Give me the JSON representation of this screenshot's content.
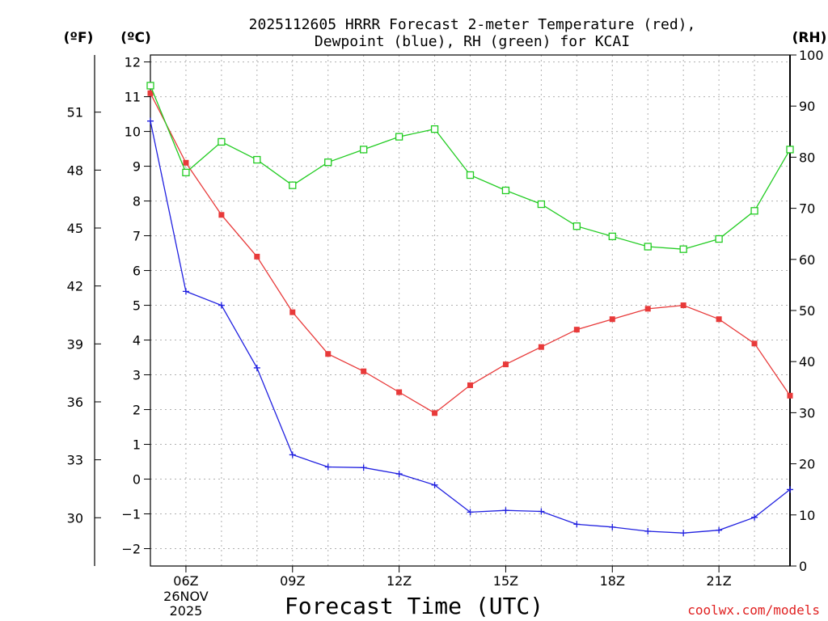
{
  "chart_data": {
    "type": "line",
    "title": [
      "2025112605 HRRR Forecast 2-meter Temperature (red),",
      "Dewpoint (blue), RH (green) for KCAI"
    ],
    "xlabel": "Forecast Time (UTC)",
    "credit": "coolwx.com/models",
    "axis_units": {
      "left_outer": "(ºF)",
      "left_inner": "(ºC)",
      "right": "(RH)"
    },
    "x_hours": [
      5,
      6,
      7,
      8,
      9,
      10,
      11,
      12,
      13,
      14,
      15,
      16,
      17,
      18,
      19,
      20,
      21,
      22,
      23
    ],
    "xlim": [
      5,
      23
    ],
    "x_ticks": [
      {
        "hour": 6,
        "label": "06Z",
        "date_line1": "26NOV",
        "date_line2": "2025"
      },
      {
        "hour": 9,
        "label": "09Z"
      },
      {
        "hour": 12,
        "label": "12Z"
      },
      {
        "hour": 15,
        "label": "15Z"
      },
      {
        "hour": 18,
        "label": "18Z"
      },
      {
        "hour": 21,
        "label": "21Z"
      }
    ],
    "celsius_axis": {
      "ylim": [
        -2.5,
        12.2
      ],
      "ticks": [
        -2,
        -1,
        0,
        1,
        2,
        3,
        4,
        5,
        6,
        7,
        8,
        9,
        10,
        11,
        12
      ]
    },
    "fahrenheit_axis": {
      "ticks": [
        30,
        33,
        36,
        39,
        42,
        45,
        48,
        51
      ]
    },
    "rh_axis": {
      "ylim": [
        0,
        100
      ],
      "ticks": [
        0,
        10,
        20,
        30,
        40,
        50,
        60,
        70,
        80,
        90,
        100
      ]
    },
    "series": [
      {
        "name": "Temperature",
        "axis": "celsius",
        "color": "#e83a3a",
        "marker": "filled-square",
        "values": [
          11.1,
          9.1,
          7.6,
          6.4,
          4.8,
          3.6,
          3.1,
          2.5,
          1.9,
          2.7,
          3.3,
          3.8,
          4.3,
          4.6,
          4.9,
          5.0,
          4.6,
          3.9,
          2.4
        ]
      },
      {
        "name": "Dewpoint",
        "axis": "celsius",
        "color": "#2020e0",
        "marker": "plus",
        "values": [
          10.3,
          5.4,
          5.0,
          3.2,
          0.7,
          0.35,
          0.33,
          0.15,
          -0.17,
          -0.95,
          -0.9,
          -0.93,
          -1.3,
          -1.38,
          -1.5,
          -1.55,
          -1.47,
          -1.1,
          -0.3
        ]
      },
      {
        "name": "RH",
        "axis": "rh",
        "color": "#22cc22",
        "marker": "open-square",
        "values": [
          94,
          77,
          83,
          79.5,
          74.5,
          79,
          81.5,
          84,
          85.5,
          76.5,
          73.5,
          70.8,
          66.5,
          64.5,
          62.5,
          62,
          64,
          69.5,
          81.5
        ]
      }
    ]
  }
}
